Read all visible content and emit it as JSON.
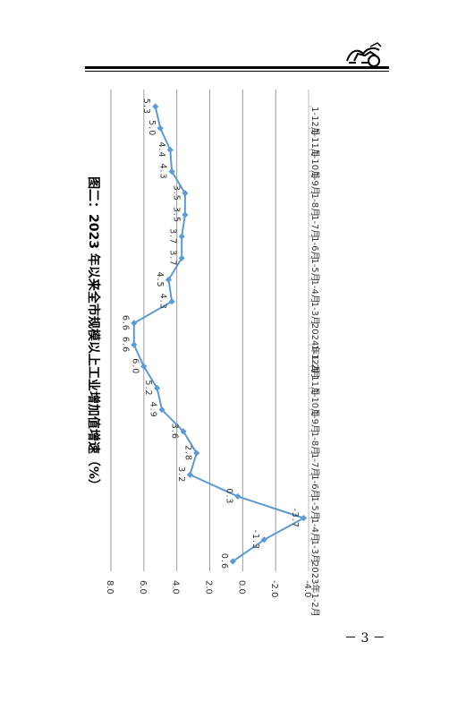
{
  "page": {
    "page_number": "－ 3 －"
  },
  "colors": {
    "series": "#5B9BD5",
    "grid": "#9a9a9a",
    "axis": "#bfbfbf",
    "text": "#333333"
  },
  "icons": {
    "logo": "horse-carriage-logo"
  },
  "chart_data": {
    "type": "line",
    "title": "图二：2023 年以来全市规模以上工业增加值增速（%）",
    "xlabel": "",
    "ylabel": "",
    "ylim": [
      -4.0,
      8.0
    ],
    "yticks": [
      "8.0",
      "6.0",
      "4.0",
      "2.0",
      "0.0",
      "-2.0",
      "-4.0"
    ],
    "grid": true,
    "categories": [
      "2023年1-2月",
      "1-3月",
      "1-4月",
      "1-5月",
      "1-6月",
      "1-7月",
      "1-8月",
      "1-9月",
      "1-10月",
      "1-11月",
      "1-12月",
      "2024年1-2月",
      "1-3月",
      "1-4月",
      "1-5月",
      "1-6月",
      "1-7月",
      "1-8月",
      "1-9月",
      "1-10月",
      "1-11月",
      "1-12月"
    ],
    "series": [
      {
        "values": [
          0.6,
          -1.3,
          -3.7,
          0.3,
          3.2,
          2.8,
          3.6,
          4.9,
          5.2,
          6.0,
          6.6,
          6.6,
          4.3,
          4.5,
          3.7,
          3.7,
          3.5,
          3.5,
          4.3,
          4.4,
          5.0,
          5.3
        ],
        "labels": [
          "0.6",
          "-1.3",
          "-3.7",
          "0.3",
          "3.2",
          "2.8",
          "3.6",
          "4.9",
          "5.2",
          "6.0",
          "6.6",
          "6.6",
          "4.3",
          "4.5",
          "3.7",
          "3.7",
          "3.5",
          "3.5",
          "4.3",
          "4.4",
          "5.0",
          "5.3"
        ]
      }
    ]
  }
}
